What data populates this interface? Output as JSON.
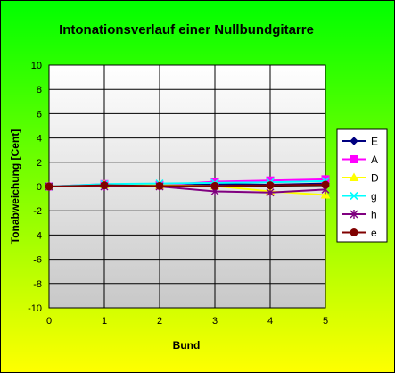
{
  "chart_data": {
    "type": "line",
    "title": "Intonationsverlauf einer Nullbundgitarre",
    "xlabel": "Bund",
    "ylabel": "Tonabweichung [Cent]",
    "x": [
      0,
      1,
      2,
      3,
      4,
      5
    ],
    "xlim": [
      0,
      5
    ],
    "ylim": [
      -10,
      10
    ],
    "x_ticks": [
      "0",
      "1",
      "2",
      "3",
      "4",
      "5"
    ],
    "y_ticks": [
      "10",
      "8",
      "6",
      "4",
      "2",
      "0",
      "-2",
      "-4",
      "-6",
      "-8",
      "-10"
    ],
    "grid": true,
    "legend_position": "right",
    "series": [
      {
        "name": "E",
        "color": "#000080",
        "marker": "diamond",
        "values": [
          0,
          0.1,
          0.05,
          0.2,
          0.15,
          0.25
        ]
      },
      {
        "name": "A",
        "color": "#FF00FF",
        "marker": "square",
        "values": [
          0,
          0.2,
          0.1,
          0.4,
          0.5,
          0.6
        ]
      },
      {
        "name": "D",
        "color": "#FFFF00",
        "marker": "triangle",
        "values": [
          0,
          0.15,
          0.1,
          0.05,
          -0.4,
          -0.7
        ]
      },
      {
        "name": "g",
        "color": "#00FFFF",
        "marker": "x",
        "values": [
          0,
          0.2,
          0.25,
          0.3,
          0.35,
          0.45
        ]
      },
      {
        "name": "h",
        "color": "#800080",
        "marker": "star",
        "values": [
          0,
          0,
          0,
          -0.4,
          -0.5,
          -0.25
        ]
      },
      {
        "name": "e",
        "color": "#800000",
        "marker": "circle",
        "values": [
          0,
          0.1,
          0.05,
          0.05,
          0.1,
          0.15
        ]
      }
    ]
  }
}
